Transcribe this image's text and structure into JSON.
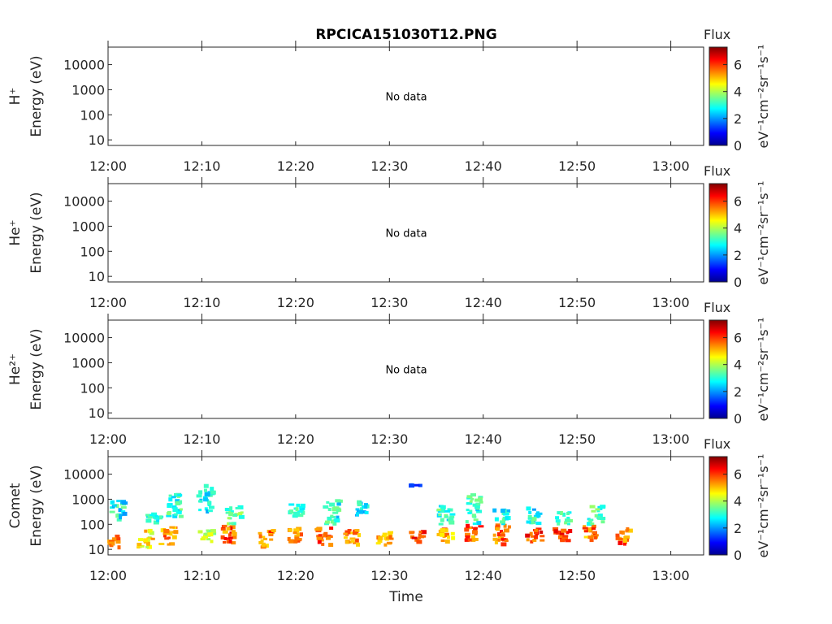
{
  "title": "RPCICA151030T12.PNG",
  "xlabel": "Time",
  "no_data_text": "No data",
  "colorbar": {
    "label": "Flux",
    "unit": "eV⁻¹cm⁻²sr⁻¹s⁻¹",
    "ticks": [
      "0",
      "2",
      "4",
      "6"
    ]
  },
  "chart_data": {
    "type": "heatmap",
    "x_ticks": [
      "12:00",
      "12:10",
      "12:20",
      "12:30",
      "12:40",
      "12:50",
      "13:00"
    ],
    "y_ticks": [
      "10",
      "100",
      "1000",
      "10000"
    ],
    "y_scale": "log",
    "ylim": [
      6,
      50000
    ],
    "clim": [
      0,
      7.3
    ],
    "panels": [
      {
        "species": "H⁺",
        "ylabel": "Energy (eV)",
        "has_data": false
      },
      {
        "species": "He⁺",
        "ylabel": "Energy (eV)",
        "has_data": false
      },
      {
        "species": "He²⁺",
        "ylabel": "Energy (eV)",
        "has_data": false
      },
      {
        "species": "Comet",
        "ylabel": "Energy (eV)",
        "has_data": true,
        "bursts": [
          {
            "time": "12:00.5",
            "energy_low": 12,
            "energy_high": 35,
            "flux": 6.0
          },
          {
            "time": "12:01",
            "energy_low": 150,
            "energy_high": 900,
            "flux": 3.6
          },
          {
            "time": "12:04",
            "energy_low": 12,
            "energy_high": 60,
            "flux": 5.5
          },
          {
            "time": "12:05",
            "energy_low": 100,
            "energy_high": 250,
            "flux": 3.5
          },
          {
            "time": "12:06.5",
            "energy_low": 15,
            "energy_high": 80,
            "flux": 6.2
          },
          {
            "time": "12:07",
            "energy_low": 200,
            "energy_high": 2000,
            "flux": 3.8
          },
          {
            "time": "12:10.5",
            "energy_low": 20,
            "energy_high": 60,
            "flux": 4.5
          },
          {
            "time": "12:10.5",
            "energy_low": 300,
            "energy_high": 3500,
            "flux": 3.6
          },
          {
            "time": "12:13",
            "energy_low": 15,
            "energy_high": 90,
            "flux": 6.5
          },
          {
            "time": "12:13.5",
            "energy_low": 100,
            "energy_high": 500,
            "flux": 4.2
          },
          {
            "time": "12:17",
            "energy_low": 12,
            "energy_high": 60,
            "flux": 6.3
          },
          {
            "time": "12:20",
            "energy_low": 20,
            "energy_high": 70,
            "flux": 6.0
          },
          {
            "time": "12:20",
            "energy_low": 200,
            "energy_high": 700,
            "flux": 3.5
          },
          {
            "time": "12:23",
            "energy_low": 15,
            "energy_high": 70,
            "flux": 6.6
          },
          {
            "time": "12:24",
            "energy_low": 100,
            "energy_high": 900,
            "flux": 3.7
          },
          {
            "time": "12:26",
            "energy_low": 12,
            "energy_high": 60,
            "flux": 6.2
          },
          {
            "time": "12:27",
            "energy_low": 200,
            "energy_high": 800,
            "flux": 3.6
          },
          {
            "time": "12:29.5",
            "energy_low": 15,
            "energy_high": 50,
            "flux": 5.8
          },
          {
            "time": "12:32.5",
            "energy_low": 3500,
            "energy_high": 3500,
            "flux": 2.2
          },
          {
            "time": "12:33",
            "energy_low": 20,
            "energy_high": 60,
            "flux": 6.6
          },
          {
            "time": "12:36",
            "energy_low": 20,
            "energy_high": 80,
            "flux": 6.0
          },
          {
            "time": "12:36",
            "energy_low": 100,
            "energy_high": 600,
            "flux": 3.8
          },
          {
            "time": "12:39",
            "energy_low": 20,
            "energy_high": 90,
            "flux": 6.4
          },
          {
            "time": "12:39",
            "energy_low": 100,
            "energy_high": 1600,
            "flux": 3.9
          },
          {
            "time": "12:42",
            "energy_low": 15,
            "energy_high": 90,
            "flux": 6.5
          },
          {
            "time": "12:42",
            "energy_low": 100,
            "energy_high": 400,
            "flux": 3.7
          },
          {
            "time": "12:45.5",
            "energy_low": 20,
            "energy_high": 80,
            "flux": 6.7
          },
          {
            "time": "12:45.5",
            "energy_low": 100,
            "energy_high": 500,
            "flux": 3.6
          },
          {
            "time": "12:48.5",
            "energy_low": 20,
            "energy_high": 70,
            "flux": 6.6
          },
          {
            "time": "12:48.5",
            "energy_low": 100,
            "energy_high": 300,
            "flux": 3.7
          },
          {
            "time": "12:51.5",
            "energy_low": 20,
            "energy_high": 90,
            "flux": 6.3
          },
          {
            "time": "12:52",
            "energy_low": 100,
            "energy_high": 550,
            "flux": 3.9
          },
          {
            "time": "12:55",
            "energy_low": 15,
            "energy_high": 70,
            "flux": 6.5
          }
        ]
      }
    ]
  }
}
